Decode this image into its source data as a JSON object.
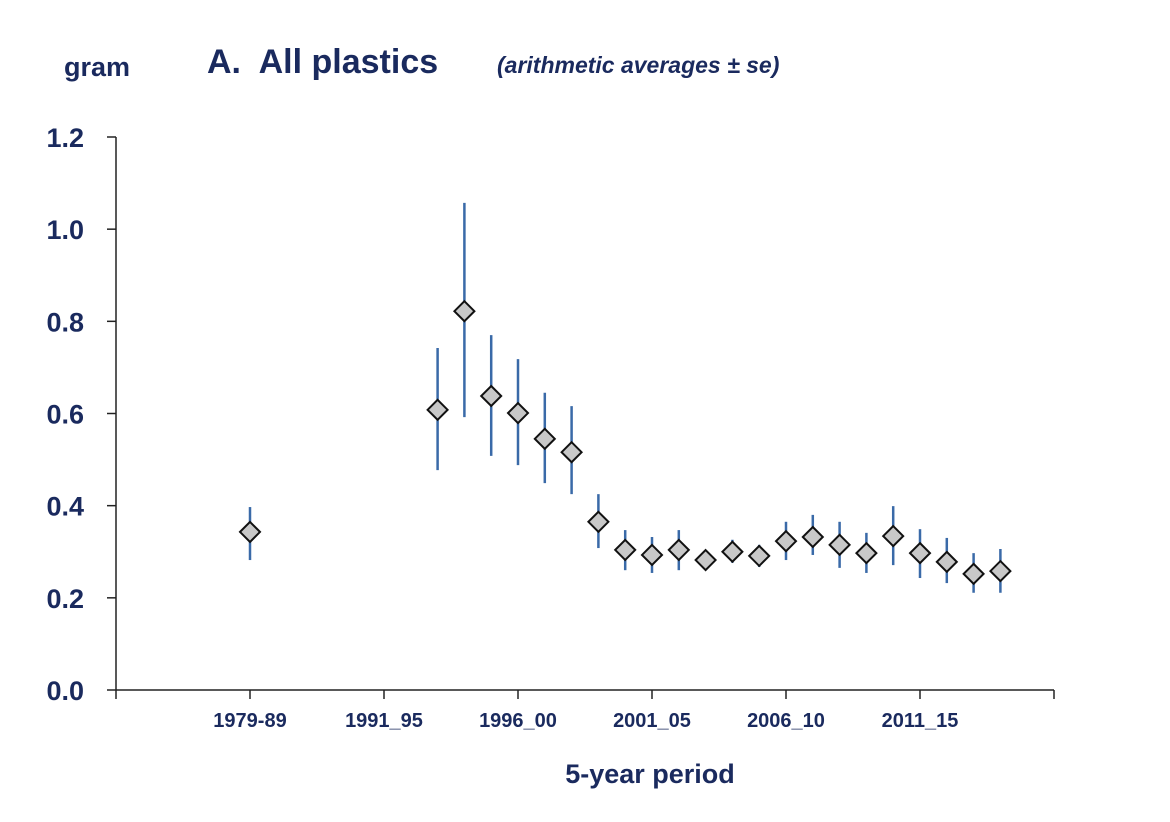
{
  "chart_data": {
    "type": "scatter",
    "title": "A.  All plastics",
    "subtitle": "(arithmetic averages ± se)",
    "ylabel": "gram",
    "xlabel": "5-year period",
    "ylim": [
      0,
      1.2
    ],
    "y_ticks": [
      "0.0",
      "0.2",
      "0.4",
      "0.6",
      "0.8",
      "1.0",
      "1.2"
    ],
    "x_tick_labels": [
      "1979-89",
      "1991_95",
      "1996_00",
      "2001_05",
      "2006_10",
      "2011_15"
    ],
    "grid": false,
    "marker": "diamond",
    "colors": {
      "marker_fill": "#c8c8c8",
      "marker_edge": "#111111",
      "error_bar": "#3a6aa8",
      "text": "#1a2a5e"
    },
    "points": [
      {
        "x": "1979-89",
        "y": 0.343,
        "upper": 0.397,
        "lower": 0.282
      },
      {
        "x": 1995,
        "y": 0.608,
        "upper": 0.742,
        "lower": 0.477
      },
      {
        "x": 1996,
        "y": 0.822,
        "upper": 1.057,
        "lower": 0.592
      },
      {
        "x": 1997,
        "y": 0.638,
        "upper": 0.77,
        "lower": 0.508
      },
      {
        "x": 1998,
        "y": 0.601,
        "upper": 0.718,
        "lower": 0.488
      },
      {
        "x": 1999,
        "y": 0.545,
        "upper": 0.645,
        "lower": 0.449
      },
      {
        "x": 2000,
        "y": 0.516,
        "upper": 0.616,
        "lower": 0.425
      },
      {
        "x": 2001,
        "y": 0.365,
        "upper": 0.425,
        "lower": 0.308
      },
      {
        "x": 2002,
        "y": 0.304,
        "upper": 0.347,
        "lower": 0.26
      },
      {
        "x": 2003,
        "y": 0.293,
        "upper": 0.332,
        "lower": 0.254
      },
      {
        "x": 2004,
        "y": 0.304,
        "upper": 0.347,
        "lower": 0.26
      },
      {
        "x": 2005,
        "y": 0.282,
        "upper": 0.3,
        "lower": 0.267
      },
      {
        "x": 2006,
        "y": 0.3,
        "upper": 0.326,
        "lower": 0.276
      },
      {
        "x": 2007,
        "y": 0.291,
        "upper": 0.315,
        "lower": 0.267
      },
      {
        "x": 2008,
        "y": 0.323,
        "upper": 0.365,
        "lower": 0.282
      },
      {
        "x": 2009,
        "y": 0.332,
        "upper": 0.38,
        "lower": 0.293
      },
      {
        "x": 2010,
        "y": 0.315,
        "upper": 0.365,
        "lower": 0.265
      },
      {
        "x": 2011,
        "y": 0.297,
        "upper": 0.341,
        "lower": 0.254
      },
      {
        "x": 2012,
        "y": 0.334,
        "upper": 0.399,
        "lower": 0.271
      },
      {
        "x": 2013,
        "y": 0.297,
        "upper": 0.349,
        "lower": 0.243
      },
      {
        "x": 2014,
        "y": 0.278,
        "upper": 0.33,
        "lower": 0.232
      },
      {
        "x": 2015,
        "y": 0.252,
        "upper": 0.297,
        "lower": 0.211
      },
      {
        "x": 2016,
        "y": 0.258,
        "upper": 0.306,
        "lower": 0.211
      }
    ]
  }
}
